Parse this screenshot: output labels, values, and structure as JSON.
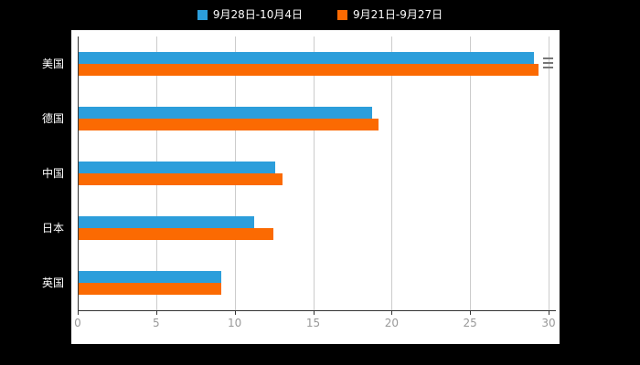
{
  "page": {
    "background": "#000000"
  },
  "axis": {
    "line_color": "#333333",
    "grid_color": "#cccccc",
    "tick_label_color": "#999999",
    "category_label_color": "#ffffff"
  },
  "chart_data": {
    "type": "bar",
    "orientation": "horizontal",
    "title": "",
    "xlabel": "",
    "ylabel": "",
    "categories": [
      "美国",
      "德国",
      "中国",
      "日本",
      "英国"
    ],
    "series": [
      {
        "name": "9月28日-10月4日",
        "color": "#2C9EDB",
        "values": [
          29.0,
          18.7,
          12.5,
          11.2,
          9.1
        ]
      },
      {
        "name": "9月21日-9月27日",
        "color": "#FB6A02",
        "values": [
          29.3,
          19.1,
          13.0,
          12.4,
          9.1
        ]
      }
    ],
    "xlim": [
      0,
      30
    ],
    "xticks": [
      0,
      5,
      10,
      15,
      20,
      25,
      30
    ],
    "grid": true,
    "legend_position": "top"
  }
}
